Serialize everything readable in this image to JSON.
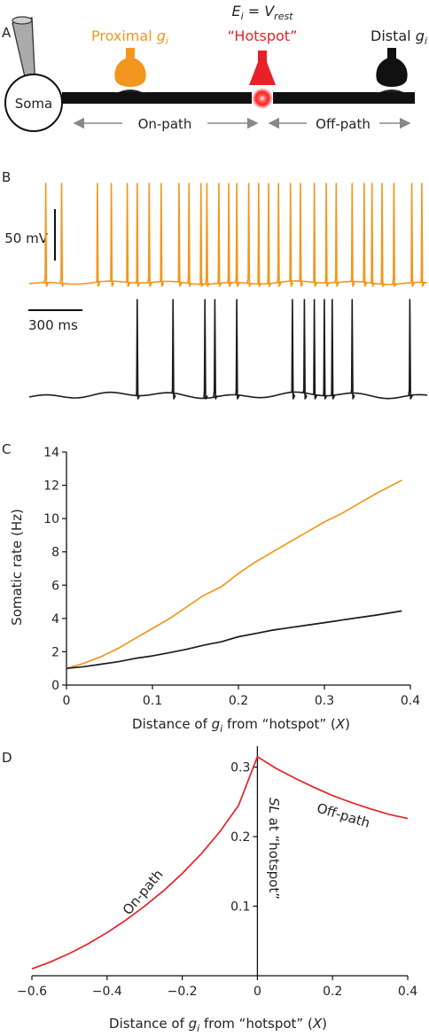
{
  "colors": {
    "orange": "#F2961D",
    "black": "#1b1b1b",
    "red": "#E8202A",
    "gray": "#888888"
  },
  "panel_a": {
    "letter": "A",
    "soma_label": "Soma",
    "proximal_label": "Proximal ",
    "proximal_sym": "g",
    "proximal_sub": "i",
    "equation_e": "E",
    "equation_e_sub": "i",
    "equation_eq": " = ",
    "equation_v": "V",
    "equation_v_sub": "rest",
    "hotspot_label": "“Hotspot”",
    "distal_label": "Distal ",
    "distal_sym": "g",
    "distal_sub": "i",
    "onpath_label": "On-path",
    "offpath_label": "Off-path"
  },
  "panel_b": {
    "letter": "B",
    "voltage_scale": "50 mV",
    "time_scale": "300 ms",
    "orange_spike_times": [
      0.04,
      0.08,
      0.17,
      0.205,
      0.245,
      0.27,
      0.3,
      0.33,
      0.375,
      0.4,
      0.43,
      0.445,
      0.475,
      0.5,
      0.52,
      0.55,
      0.575,
      0.6,
      0.625,
      0.655,
      0.68,
      0.715,
      0.745,
      0.77,
      0.81,
      0.84,
      0.86,
      0.885,
      0.915,
      0.96,
      0.985
    ],
    "black_spike_times": [
      0.27,
      0.36,
      0.44,
      0.465,
      0.52,
      0.66,
      0.69,
      0.715,
      0.74,
      0.76,
      0.81,
      0.955
    ]
  },
  "chart_data": [
    {
      "type": "line",
      "panel": "C",
      "xlabel_prefix": "Distance of ",
      "xlabel_sym": "g",
      "xlabel_sub": "i",
      "xlabel_mid": " from “hotspot” (",
      "xlabel_x": "X",
      "xlabel_end": ")",
      "ylabel": "Somatic rate (Hz)",
      "xlim": [
        0,
        0.4
      ],
      "ylim": [
        0,
        14
      ],
      "xticks": [
        0,
        0.1,
        0.2,
        0.3,
        0.4
      ],
      "xtick_labels": [
        "0",
        "0.1",
        "0.2",
        "0.3",
        "0.4"
      ],
      "yticks": [
        0,
        2,
        4,
        6,
        8,
        10,
        12,
        14
      ],
      "ytick_labels": [
        "0",
        "2",
        "4",
        "6",
        "8",
        "10",
        "12",
        "14"
      ],
      "series": [
        {
          "color": "orange",
          "x": [
            0,
            0.02,
            0.04,
            0.06,
            0.08,
            0.1,
            0.12,
            0.14,
            0.16,
            0.18,
            0.2,
            0.22,
            0.24,
            0.26,
            0.28,
            0.3,
            0.32,
            0.34,
            0.36,
            0.39
          ],
          "y": [
            1.0,
            1.3,
            1.7,
            2.2,
            2.8,
            3.4,
            4.0,
            4.7,
            5.4,
            5.9,
            6.7,
            7.4,
            8.0,
            8.6,
            9.2,
            9.8,
            10.3,
            10.9,
            11.5,
            12.3
          ]
        },
        {
          "color": "black",
          "x": [
            0,
            0.02,
            0.04,
            0.06,
            0.08,
            0.1,
            0.12,
            0.14,
            0.16,
            0.18,
            0.2,
            0.22,
            0.24,
            0.26,
            0.28,
            0.3,
            0.32,
            0.34,
            0.36,
            0.39
          ],
          "y": [
            1.0,
            1.1,
            1.25,
            1.4,
            1.6,
            1.75,
            1.95,
            2.15,
            2.4,
            2.6,
            2.9,
            3.1,
            3.3,
            3.45,
            3.6,
            3.75,
            3.9,
            4.05,
            4.2,
            4.45
          ]
        }
      ]
    },
    {
      "type": "line",
      "panel": "D",
      "xlabel_prefix": "Distance of ",
      "xlabel_sym": "g",
      "xlabel_sub": "i",
      "xlabel_mid": " from “hotspot” (",
      "xlabel_x": "X",
      "xlabel_end": ")",
      "ylabel_sym": "SL",
      "ylabel_rest": " at “hotspot”",
      "xlim": [
        -0.6,
        0.4
      ],
      "ylim": [
        0,
        0.33
      ],
      "xticks": [
        -0.6,
        -0.4,
        -0.2,
        0,
        0.2,
        0.4
      ],
      "xtick_labels": [
        "−0.6",
        "−0.4",
        "−0.2",
        "0",
        "0.2",
        "0.4"
      ],
      "yticks": [
        0.1,
        0.2,
        0.3
      ],
      "ytick_labels": [
        "0.1",
        "0.2",
        "0.3"
      ],
      "annotations": [
        "On-path",
        "Off-path"
      ],
      "series": [
        {
          "color": "red",
          "x": [
            -0.6,
            -0.55,
            -0.5,
            -0.45,
            -0.4,
            -0.35,
            -0.3,
            -0.25,
            -0.2,
            -0.15,
            -0.1,
            -0.05,
            0,
            0.05,
            0.1,
            0.15,
            0.2,
            0.25,
            0.3,
            0.35,
            0.4
          ],
          "y": [
            0.01,
            0.02,
            0.032,
            0.046,
            0.062,
            0.08,
            0.1,
            0.122,
            0.147,
            0.175,
            0.207,
            0.245,
            0.315,
            0.298,
            0.284,
            0.271,
            0.259,
            0.249,
            0.24,
            0.232,
            0.226
          ]
        }
      ]
    }
  ]
}
